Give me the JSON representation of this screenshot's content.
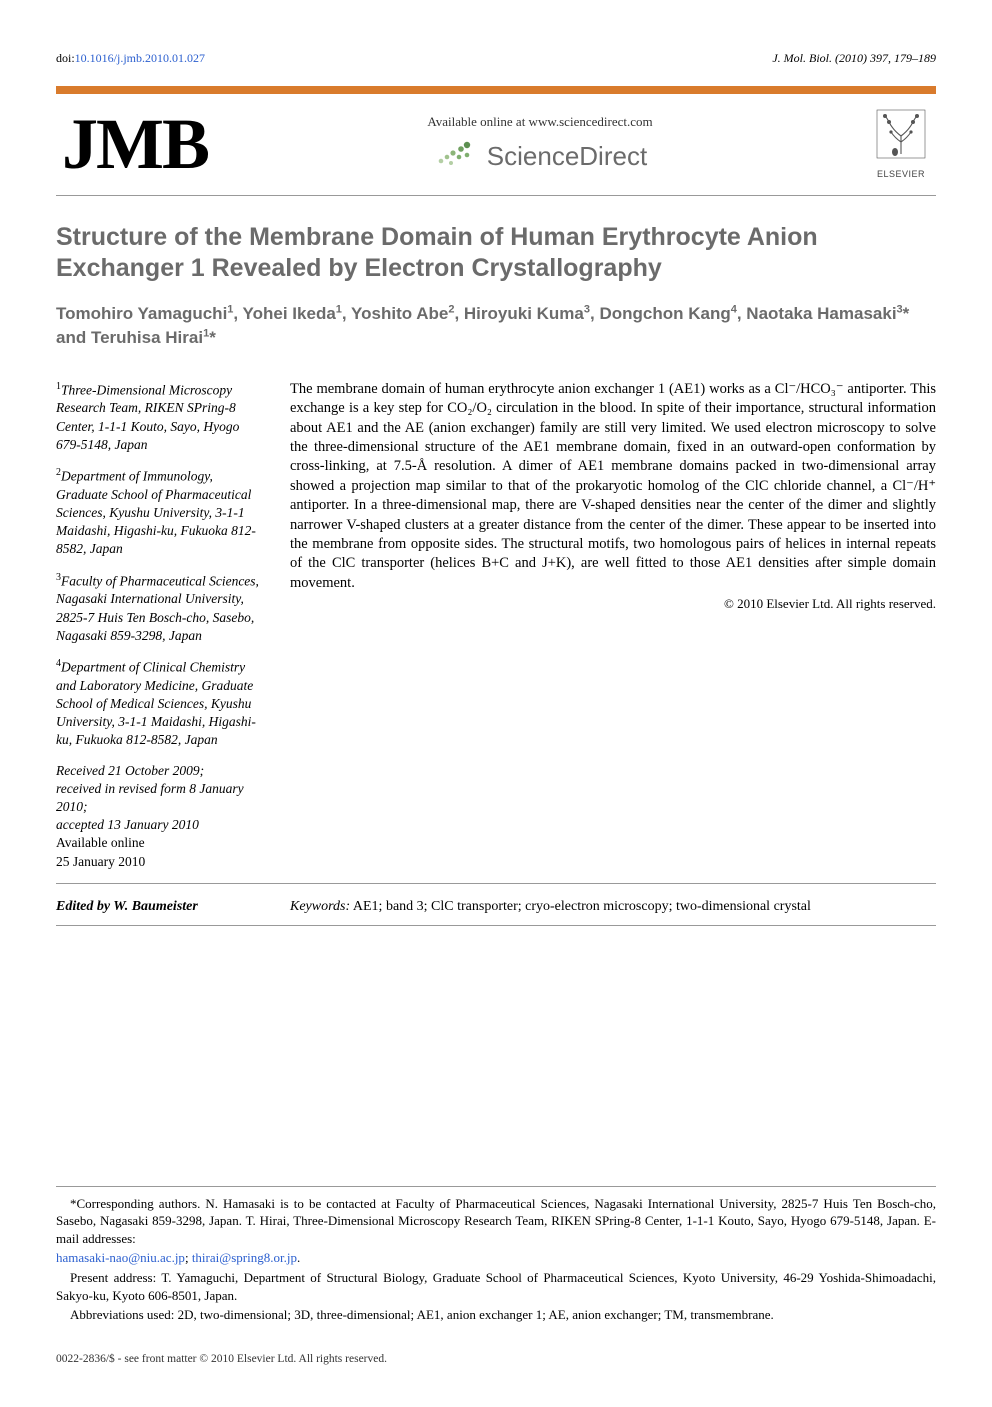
{
  "doi": {
    "label": "doi:",
    "link_text": "10.1016/j.jmb.2010.01.027",
    "link_color": "#2b5fcf"
  },
  "journal_ref": "J. Mol. Biol. (2010) 397, 179–189",
  "header": {
    "logo_text": "JMB",
    "sd_available": "Available online at www.sciencedirect.com",
    "sd_name": "ScienceDirect",
    "elsevier_label": "ELSEVIER",
    "accent_color": "#d97b2c",
    "sd_dot_color": "#7fae6f"
  },
  "title": "Structure of the Membrane Domain of Human Erythrocyte Anion Exchanger 1 Revealed by Electron Crystallography",
  "authors_html": "Tomohiro Yamaguchi<sup>1</sup>, Yohei Ikeda<sup>1</sup>, Yoshito Abe<sup>2</sup>, Hiroyuki Kuma<sup>3</sup>, Dongchon Kang<sup>4</sup>, Naotaka Hamasaki<sup>3</sup>* and Teruhisa Hirai<sup>1</sup>*",
  "affiliations": [
    {
      "sup": "1",
      "text": "Three-Dimensional Microscopy Research Team, RIKEN SPring-8 Center, 1-1-1 Kouto, Sayo, Hyogo 679-5148, Japan"
    },
    {
      "sup": "2",
      "text": "Department of Immunology, Graduate School of Pharmaceutical Sciences, Kyushu University, 3-1-1 Maidashi, Higashi-ku, Fukuoka 812-8582, Japan"
    },
    {
      "sup": "3",
      "text": "Faculty of Pharmaceutical Sciences, Nagasaki International University, 2825-7 Huis Ten Bosch-cho, Sasebo, Nagasaki 859-3298, Japan"
    },
    {
      "sup": "4",
      "text": "Department of Clinical Chemistry and Laboratory Medicine, Graduate School of Medical Sciences, Kyushu University, 3-1-1 Maidashi, Higashi-ku, Fukuoka 812-8582, Japan"
    }
  ],
  "dates": {
    "received": "Received 21 October 2009;",
    "revised": "received in revised form 8 January 2010;",
    "accepted": "accepted 13 January 2010",
    "online_label": "Available online",
    "online_date": "25 January 2010"
  },
  "abstract": "The membrane domain of human erythrocyte anion exchanger 1 (AE1) works as a Cl⁻/HCO₃⁻ antiporter. This exchange is a key step for CO₂/O₂ circulation in the blood. In spite of their importance, structural information about AE1 and the AE (anion exchanger) family are still very limited. We used electron microscopy to solve the three-dimensional structure of the AE1 membrane domain, fixed in an outward-open conformation by cross-linking, at 7.5-Å resolution. A dimer of AE1 membrane domains packed in two-dimensional array showed a projection map similar to that of the prokaryotic homolog of the ClC chloride channel, a Cl⁻/H⁺ antiporter. In a three-dimensional map, there are V-shaped densities near the center of the dimer and slightly narrower V-shaped clusters at a greater distance from the center of the dimer. These appear to be inserted into the membrane from opposite sides. The structural motifs, two homologous pairs of helices in internal repeats of the ClC transporter (helices B+C and J+K), are well fitted to those AE1 densities after simple domain movement.",
  "copyright": "© 2010 Elsevier Ltd. All rights reserved.",
  "edited_by": "Edited by W. Baumeister",
  "keywords": {
    "label": "Keywords:",
    "text": "AE1; band 3; ClC transporter; cryo-electron microscopy; two-dimensional crystal"
  },
  "footnotes": {
    "corresponding": "*Corresponding authors. N. Hamasaki is to be contacted at Faculty of Pharmaceutical Sciences, Nagasaki International University, 2825-7 Huis Ten Bosch-cho, Sasebo, Nagasaki 859-3298, Japan. T. Hirai, Three-Dimensional Microscopy Research Team, RIKEN SPring-8 Center, 1-1-1 Kouto, Sayo, Hyogo 679-5148, Japan. E-mail addresses:",
    "emails": [
      "hamasaki-nao@niu.ac.jp",
      "thirai@spring8.or.jp"
    ],
    "email_sep": "; ",
    "email_end": ".",
    "present": "Present address: T. Yamaguchi, Department of Structural Biology, Graduate School of Pharmaceutical Sciences, Kyoto University, 46-29 Yoshida-Shimoadachi, Sakyo-ku, Kyoto 606-8501, Japan.",
    "abbrev": "Abbreviations used: 2D, two-dimensional; 3D, three-dimensional; AE1, anion exchanger 1; AE, anion exchanger; TM, transmembrane."
  },
  "footer_line": "0022-2836/$ - see front matter © 2010 Elsevier Ltd. All rights reserved.",
  "colors": {
    "heading_gray": "#6b6b6b",
    "link_blue": "#2b5fcf",
    "text_black": "#000000",
    "border_gray": "#999999"
  },
  "fonts": {
    "body_family": "Times New Roman",
    "heading_family": "Arial",
    "title_size_pt": 19,
    "author_size_pt": 13,
    "body_size_pt": 11,
    "footnote_size_pt": 10
  }
}
